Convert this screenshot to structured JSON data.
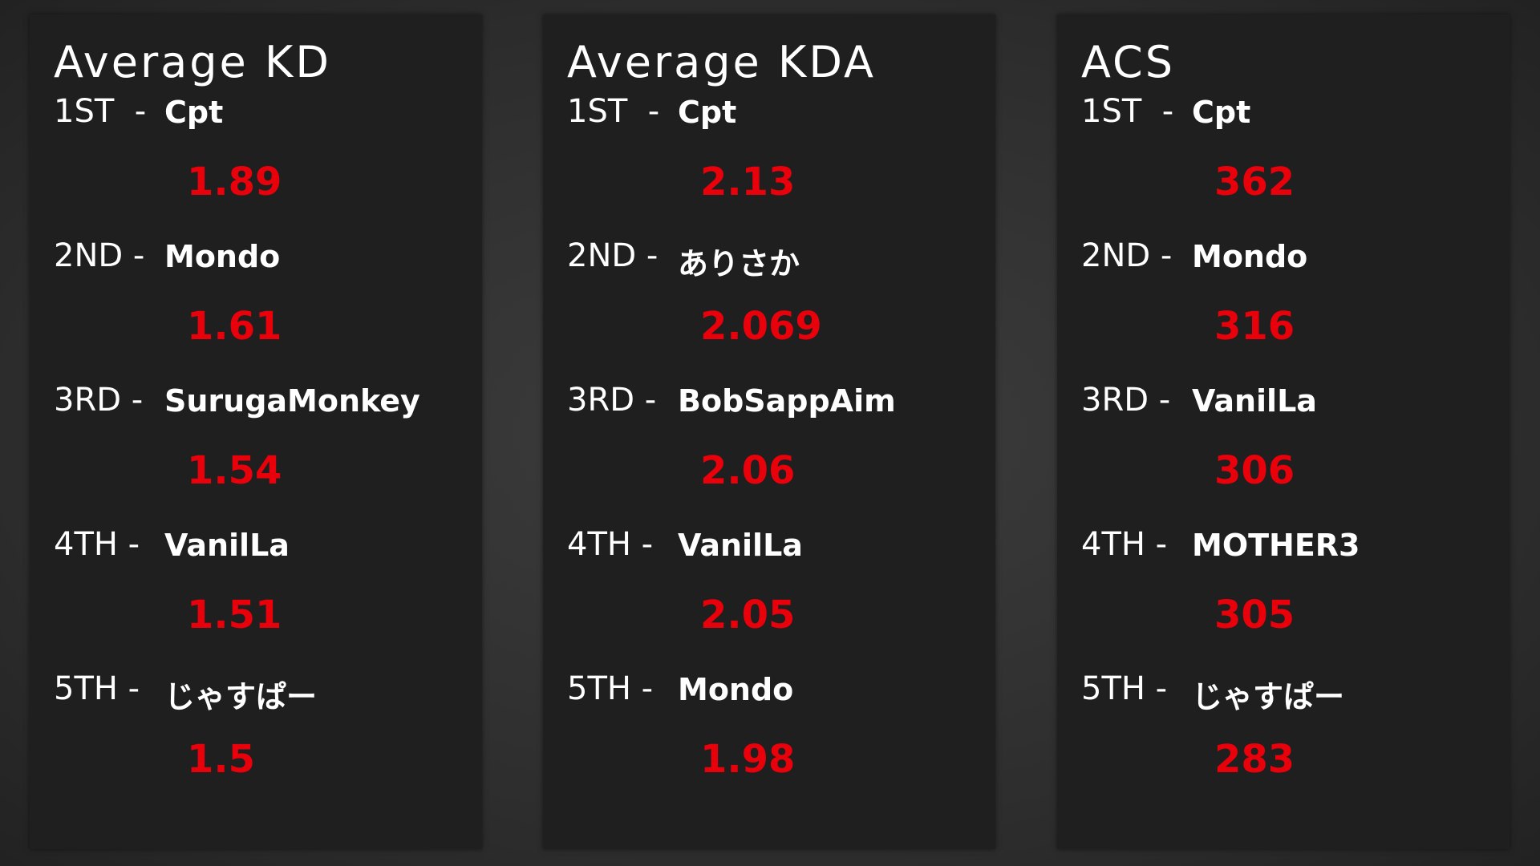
{
  "panels": [
    {
      "title": "Average KD",
      "entries": [
        {
          "rank": "1ST  -",
          "name": "Cpt",
          "value": 1.89
        },
        {
          "rank": "2ND -",
          "name": "Mondo",
          "value": 1.61
        },
        {
          "rank": "3RD -",
          "name": "SurugaMonkey",
          "value": 1.54
        },
        {
          "rank": "4TH -",
          "name": "VanilLa",
          "value": 1.51
        },
        {
          "rank": "5TH -",
          "name": "じゃすぱー",
          "value": 1.5
        }
      ]
    },
    {
      "title": "Average KDA",
      "entries": [
        {
          "rank": "1ST  -",
          "name": "Cpt",
          "value": 2.13
        },
        {
          "rank": "2ND -",
          "name": "ありさか",
          "value": 2.069
        },
        {
          "rank": "3RD -",
          "name": "BobSappAim",
          "value": 2.06
        },
        {
          "rank": "4TH -",
          "name": "VanilLa",
          "value": 2.05
        },
        {
          "rank": "5TH -",
          "name": "Mondo",
          "value": 1.98
        }
      ]
    },
    {
      "title": "ACS",
      "entries": [
        {
          "rank": "1ST  -",
          "name": "Cpt",
          "value": 362
        },
        {
          "rank": "2ND -",
          "name": "Mondo",
          "value": 316
        },
        {
          "rank": "3RD -",
          "name": "VanilLa",
          "value": 306
        },
        {
          "rank": "4TH -",
          "name": "MOTHER3",
          "value": 305
        },
        {
          "rank": "5TH -",
          "name": "じゃすぱー",
          "value": 283
        }
      ]
    }
  ]
}
